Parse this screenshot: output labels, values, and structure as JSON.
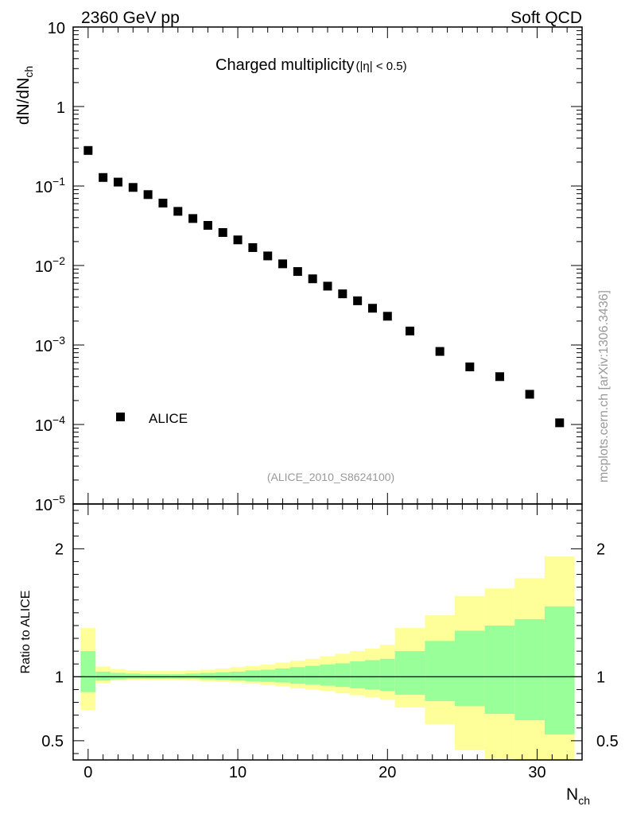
{
  "header": {
    "left": "2360 GeV pp",
    "right": "Soft QCD"
  },
  "watermark": {
    "side": "mcplots.cern.ch [arXiv:1306.3436]",
    "analysis": "(ALICE_2010_S8624100)"
  },
  "colors": {
    "frame": "#000000",
    "marker": "#000000",
    "band_outer": "#ffff99",
    "band_inner": "#99ff99",
    "watermark": "#999999"
  },
  "chart_data": [
    {
      "id": "main",
      "type": "scatter",
      "title": "Charged multiplicity",
      "title_suffix": "(|η| < 0.5)",
      "ylabel": "dN/dN",
      "ylabel_sub": "ch",
      "yscale": "log",
      "ylim": [
        1e-05,
        10
      ],
      "xlim": [
        -1,
        33
      ],
      "yticks": [
        {
          "v": 10,
          "base": "10",
          "exp": ""
        },
        {
          "v": 1,
          "base": "1",
          "exp": ""
        },
        {
          "v": 0.1,
          "base": "10",
          "exp": "−1"
        },
        {
          "v": 0.01,
          "base": "10",
          "exp": "−2"
        },
        {
          "v": 0.001,
          "base": "10",
          "exp": "−3"
        },
        {
          "v": 0.0001,
          "base": "10",
          "exp": "−4"
        },
        {
          "v": 1e-05,
          "base": "10",
          "exp": "−5"
        }
      ],
      "legend": {
        "label": "ALICE",
        "placement": "bottom-left"
      },
      "series": [
        {
          "name": "ALICE",
          "x": [
            0,
            1,
            2,
            3,
            4,
            5,
            6,
            7,
            8,
            9,
            10,
            11,
            12,
            13,
            14,
            15,
            16,
            17,
            18,
            19,
            20,
            21.5,
            23.5,
            25.5,
            27.5,
            29.5,
            31.5
          ],
          "y": [
            0.28,
            0.128,
            0.112,
            0.096,
            0.078,
            0.061,
            0.048,
            0.039,
            0.032,
            0.026,
            0.021,
            0.0168,
            0.0132,
            0.0105,
            0.0084,
            0.0068,
            0.0055,
            0.0044,
            0.0036,
            0.0029,
            0.0023,
            0.0015,
            0.00083,
            0.00053,
            0.0004,
            0.00024,
            0.000105
          ]
        }
      ]
    },
    {
      "id": "ratio",
      "type": "area",
      "ylabel": "Ratio to ALICE",
      "xlabel": "N",
      "xlabel_sub": "ch",
      "ylim": [
        0.35,
        2.35
      ],
      "xlim": [
        -1,
        33
      ],
      "xticks": [
        0,
        10,
        20,
        30
      ],
      "yticks_labeled": [
        0.5,
        1,
        2
      ],
      "reference_line": 1,
      "bands": {
        "edges": [
          -0.5,
          0.5,
          1.5,
          2.5,
          3.5,
          4.5,
          5.5,
          6.5,
          7.5,
          8.5,
          9.5,
          10.5,
          11.5,
          12.5,
          13.5,
          14.5,
          15.5,
          16.5,
          17.5,
          18.5,
          19.5,
          20.5,
          22.5,
          24.5,
          26.5,
          28.5,
          30.5,
          32.5
        ],
        "outer_low": [
          0.74,
          0.95,
          0.97,
          0.975,
          0.975,
          0.975,
          0.975,
          0.97,
          0.965,
          0.96,
          0.955,
          0.945,
          0.935,
          0.925,
          0.91,
          0.9,
          0.89,
          0.87,
          0.855,
          0.84,
          0.82,
          0.76,
          0.63,
          0.43,
          0.36,
          0.32,
          0.3
        ],
        "outer_high": [
          1.38,
          1.08,
          1.06,
          1.05,
          1.045,
          1.045,
          1.045,
          1.05,
          1.055,
          1.065,
          1.075,
          1.085,
          1.095,
          1.11,
          1.125,
          1.14,
          1.16,
          1.18,
          1.2,
          1.22,
          1.25,
          1.38,
          1.48,
          1.63,
          1.69,
          1.77,
          1.94
        ],
        "inner_low": [
          0.88,
          0.97,
          0.98,
          0.985,
          0.985,
          0.985,
          0.985,
          0.985,
          0.98,
          0.975,
          0.97,
          0.965,
          0.96,
          0.955,
          0.945,
          0.94,
          0.93,
          0.92,
          0.91,
          0.9,
          0.89,
          0.86,
          0.81,
          0.77,
          0.71,
          0.66,
          0.55
        ],
        "inner_high": [
          1.2,
          1.04,
          1.03,
          1.025,
          1.02,
          1.02,
          1.02,
          1.025,
          1.03,
          1.035,
          1.04,
          1.05,
          1.055,
          1.065,
          1.075,
          1.085,
          1.095,
          1.105,
          1.12,
          1.13,
          1.14,
          1.2,
          1.28,
          1.36,
          1.4,
          1.45,
          1.55
        ]
      }
    }
  ]
}
